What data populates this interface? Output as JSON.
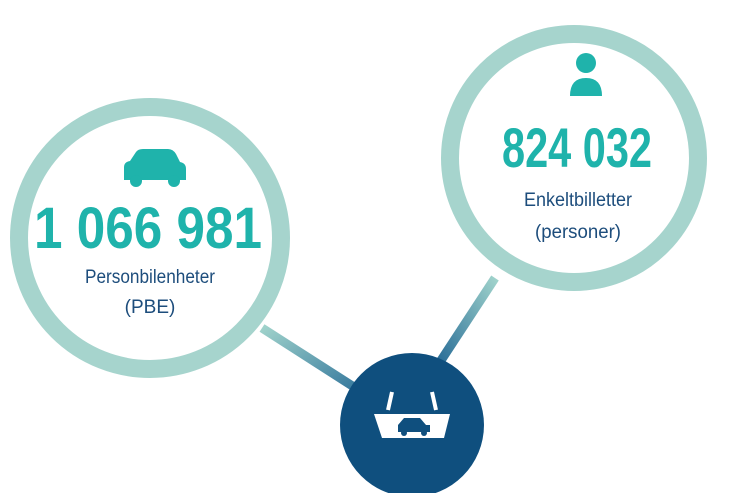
{
  "stats": [
    {
      "value": "1 066 981",
      "lines": [
        "Personbilenheter",
        "(PBE)"
      ]
    },
    {
      "value": "824 032",
      "lines": [
        "Enkeltbilletter",
        "(personer)"
      ]
    }
  ]
}
